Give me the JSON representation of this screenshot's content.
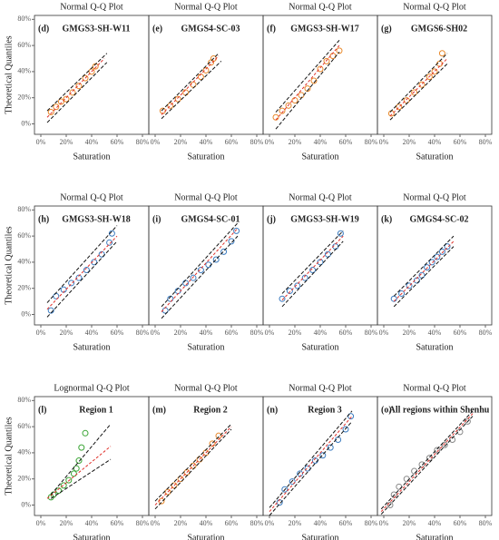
{
  "chart_data": [
    {
      "type": "scatter",
      "title": "Normal Q-Q Plot",
      "panel_label": "(d)",
      "subtitle": "GMGS3-SH-W11",
      "xlabel": "Saturation",
      "ylabel": "Theoretical Quantiles",
      "point_color": "#e8892b",
      "line_color": "#e0302a",
      "xlim": [
        -5,
        85
      ],
      "ylim": [
        -8,
        83
      ],
      "xticks": [
        {
          "value": 0,
          "label": "0%"
        },
        {
          "value": 20,
          "label": "20%"
        },
        {
          "value": 40,
          "label": "40%"
        },
        {
          "value": 60,
          "label": "60%"
        },
        {
          "value": 80,
          "label": "80%"
        }
      ],
      "yticks": [
        {
          "value": 0,
          "label": "0%"
        },
        {
          "value": 20,
          "label": "20%"
        },
        {
          "value": 40,
          "label": "40%"
        },
        {
          "value": 60,
          "label": "60%"
        },
        {
          "value": 80,
          "label": "80%"
        }
      ],
      "points": {
        "x": [
          8,
          12,
          16,
          20,
          25,
          30,
          35,
          40,
          43
        ],
        "y": [
          9,
          13,
          17,
          19,
          24,
          29,
          35,
          40,
          44
        ]
      },
      "fit": {
        "x": [
          5,
          50
        ],
        "y": [
          5,
          50
        ]
      },
      "upper": {
        "x": [
          5,
          52
        ],
        "y": [
          10,
          54
        ]
      },
      "lower": {
        "x": [
          5,
          52
        ],
        "y": [
          1,
          47
        ]
      }
    },
    {
      "type": "scatter",
      "title": "Normal Q-Q Plot",
      "panel_label": "(e)",
      "subtitle": "GMGS4-SC-03",
      "xlabel": "Saturation",
      "point_color": "#e8892b",
      "line_color": "#e0302a",
      "xlim": [
        -5,
        85
      ],
      "ylim": [
        -8,
        83
      ],
      "xticks": [
        {
          "value": 0,
          "label": "0%"
        },
        {
          "value": 20,
          "label": "20%"
        },
        {
          "value": 40,
          "label": "40%"
        },
        {
          "value": 60,
          "label": "60%"
        },
        {
          "value": 80,
          "label": "80%"
        }
      ],
      "points": {
        "x": [
          6,
          12,
          18,
          24,
          30,
          36,
          40,
          44,
          46
        ],
        "y": [
          10,
          14,
          19,
          24,
          30,
          36,
          41,
          47,
          50
        ]
      },
      "fit": {
        "x": [
          5,
          50
        ],
        "y": [
          7,
          52
        ]
      },
      "upper": {
        "x": [
          5,
          50
        ],
        "y": [
          10,
          54
        ]
      },
      "lower": {
        "x": [
          5,
          52
        ],
        "y": [
          4,
          48
        ]
      }
    },
    {
      "type": "scatter",
      "title": "Normal Q-Q Plot",
      "panel_label": "(f)",
      "subtitle": "GMGS3-SH-W17",
      "xlabel": "Saturation",
      "point_color": "#e8892b",
      "line_color": "#e0302a",
      "xlim": [
        -5,
        85
      ],
      "ylim": [
        -8,
        83
      ],
      "xticks": [
        {
          "value": 0,
          "label": "0%"
        },
        {
          "value": 20,
          "label": "20%"
        },
        {
          "value": 40,
          "label": "40%"
        },
        {
          "value": 60,
          "label": "60%"
        },
        {
          "value": 80,
          "label": "80%"
        }
      ],
      "points": {
        "x": [
          5,
          10,
          15,
          20,
          25,
          30,
          35,
          40,
          45,
          50,
          55
        ],
        "y": [
          5,
          10,
          14,
          18,
          22,
          27,
          33,
          42,
          48,
          52,
          56
        ]
      },
      "fit": {
        "x": [
          5,
          55
        ],
        "y": [
          3,
          60
        ]
      },
      "upper": {
        "x": [
          5,
          55
        ],
        "y": [
          9,
          64
        ]
      },
      "lower": {
        "x": [
          5,
          55
        ],
        "y": [
          -4,
          55
        ]
      }
    },
    {
      "type": "scatter",
      "title": "Normal Q-Q Plot",
      "panel_label": "(g)",
      "subtitle": "GMGS6-SH02",
      "xlabel": "Saturation",
      "point_color": "#e8892b",
      "line_color": "#e0302a",
      "xlim": [
        -5,
        85
      ],
      "ylim": [
        -8,
        83
      ],
      "xticks": [
        {
          "value": 0,
          "label": "0%"
        },
        {
          "value": 20,
          "label": "20%"
        },
        {
          "value": 40,
          "label": "40%"
        },
        {
          "value": 60,
          "label": "60%"
        },
        {
          "value": 80,
          "label": "80%"
        }
      ],
      "points": {
        "x": [
          6,
          12,
          18,
          24,
          30,
          36,
          40,
          44,
          46
        ],
        "y": [
          8,
          13,
          18,
          24,
          30,
          36,
          40,
          46,
          54
        ]
      },
      "fit": {
        "x": [
          5,
          50
        ],
        "y": [
          6,
          50
        ]
      },
      "upper": {
        "x": [
          5,
          50
        ],
        "y": [
          9,
          54
        ]
      },
      "lower": {
        "x": [
          5,
          50
        ],
        "y": [
          3,
          46
        ]
      }
    },
    {
      "type": "scatter",
      "title": "Normal Q-Q Plot",
      "panel_label": "(h)",
      "subtitle": "GMGS3-SH-W18",
      "xlabel": "Saturation",
      "ylabel": "Theoretical Quantiles",
      "point_color": "#3c7cc0",
      "line_color": "#e0302a",
      "xlim": [
        -5,
        85
      ],
      "ylim": [
        -8,
        83
      ],
      "xticks": [
        {
          "value": 0,
          "label": "0%"
        },
        {
          "value": 20,
          "label": "20%"
        },
        {
          "value": 40,
          "label": "40%"
        },
        {
          "value": 60,
          "label": "60%"
        },
        {
          "value": 80,
          "label": "80%"
        }
      ],
      "yticks": [
        {
          "value": 0,
          "label": "0%"
        },
        {
          "value": 20,
          "label": "20%"
        },
        {
          "value": 40,
          "label": "40%"
        },
        {
          "value": 60,
          "label": "60%"
        },
        {
          "value": 80,
          "label": "80%"
        }
      ],
      "points": {
        "x": [
          8,
          12,
          18,
          24,
          30,
          36,
          42,
          48,
          54,
          56
        ],
        "y": [
          3,
          14,
          19,
          24,
          28,
          34,
          40,
          46,
          55,
          62
        ]
      },
      "fit": {
        "x": [
          5,
          60
        ],
        "y": [
          4,
          60
        ]
      },
      "upper": {
        "x": [
          5,
          60
        ],
        "y": [
          9,
          68
        ]
      },
      "lower": {
        "x": [
          5,
          60
        ],
        "y": [
          -2,
          56
        ]
      }
    },
    {
      "type": "scatter",
      "title": "Normal Q-Q Plot",
      "panel_label": "(i)",
      "subtitle": "GMGS4-SC-01",
      "xlabel": "Saturation",
      "point_color": "#3c7cc0",
      "line_color": "#e0302a",
      "xlim": [
        -5,
        85
      ],
      "ylim": [
        -8,
        83
      ],
      "xticks": [
        {
          "value": 0,
          "label": "0%"
        },
        {
          "value": 20,
          "label": "20%"
        },
        {
          "value": 40,
          "label": "40%"
        },
        {
          "value": 60,
          "label": "60%"
        },
        {
          "value": 80,
          "label": "80%"
        }
      ],
      "points": {
        "x": [
          8,
          12,
          18,
          24,
          30,
          36,
          42,
          48,
          54,
          60,
          64
        ],
        "y": [
          3,
          12,
          18,
          24,
          28,
          34,
          38,
          42,
          48,
          56,
          64
        ]
      },
      "fit": {
        "x": [
          5,
          65
        ],
        "y": [
          2,
          66
        ]
      },
      "upper": {
        "x": [
          5,
          65
        ],
        "y": [
          6,
          70
        ]
      },
      "lower": {
        "x": [
          5,
          65
        ],
        "y": [
          -3,
          60
        ]
      }
    },
    {
      "type": "scatter",
      "title": "Normal Q-Q Plot",
      "panel_label": "(j)",
      "subtitle": "GMGS3-SH-W19",
      "xlabel": "Saturation",
      "point_color": "#3c7cc0",
      "line_color": "#e0302a",
      "xlim": [
        -5,
        85
      ],
      "ylim": [
        -8,
        83
      ],
      "xticks": [
        {
          "value": 0,
          "label": "0%"
        },
        {
          "value": 20,
          "label": "20%"
        },
        {
          "value": 40,
          "label": "40%"
        },
        {
          "value": 60,
          "label": "60%"
        },
        {
          "value": 80,
          "label": "80%"
        }
      ],
      "points": {
        "x": [
          10,
          16,
          22,
          28,
          34,
          40,
          46,
          52,
          56
        ],
        "y": [
          12,
          18,
          22,
          28,
          34,
          40,
          46,
          52,
          62
        ]
      },
      "fit": {
        "x": [
          10,
          58
        ],
        "y": [
          11,
          60
        ]
      },
      "upper": {
        "x": [
          10,
          58
        ],
        "y": [
          16,
          64
        ]
      },
      "lower": {
        "x": [
          10,
          58
        ],
        "y": [
          6,
          56
        ]
      }
    },
    {
      "type": "scatter",
      "title": "Normal Q-Q Plot",
      "panel_label": "(k)",
      "subtitle": "GMGS4-SC-02",
      "xlabel": "Saturation",
      "point_color": "#3c7cc0",
      "line_color": "#e0302a",
      "xlim": [
        -5,
        85
      ],
      "ylim": [
        -8,
        83
      ],
      "xticks": [
        {
          "value": 0,
          "label": "0%"
        },
        {
          "value": 20,
          "label": "20%"
        },
        {
          "value": 40,
          "label": "40%"
        },
        {
          "value": 60,
          "label": "60%"
        },
        {
          "value": 80,
          "label": "80%"
        }
      ],
      "points": {
        "x": [
          8,
          14,
          20,
          26,
          30,
          34,
          38,
          42,
          46,
          50
        ],
        "y": [
          12,
          16,
          22,
          26,
          30,
          36,
          40,
          44,
          48,
          52
        ]
      },
      "fit": {
        "x": [
          8,
          55
        ],
        "y": [
          10,
          56
        ]
      },
      "upper": {
        "x": [
          8,
          55
        ],
        "y": [
          14,
          60
        ]
      },
      "lower": {
        "x": [
          8,
          55
        ],
        "y": [
          6,
          52
        ]
      }
    },
    {
      "type": "scatter",
      "title": "Lognormal Q-Q Plot",
      "panel_label": "(l)",
      "subtitle": "Region 1",
      "xlabel": "Saturation",
      "ylabel": "Theoretical Quantiles",
      "point_color": "#3aa535",
      "line_color": "#e0302a",
      "xlim": [
        -5,
        85
      ],
      "ylim": [
        -8,
        83
      ],
      "xticks": [
        {
          "value": 0,
          "label": "0%"
        },
        {
          "value": 20,
          "label": "20%"
        },
        {
          "value": 40,
          "label": "40%"
        },
        {
          "value": 60,
          "label": "60%"
        },
        {
          "value": 80,
          "label": "80%"
        }
      ],
      "yticks": [
        {
          "value": 0,
          "label": "0%"
        },
        {
          "value": 20,
          "label": "20%"
        },
        {
          "value": 40,
          "label": "40%"
        },
        {
          "value": 60,
          "label": "60%"
        },
        {
          "value": 80,
          "label": "80%"
        }
      ],
      "points": {
        "x": [
          8,
          10,
          14,
          18,
          22,
          26,
          28,
          30,
          32,
          35
        ],
        "y": [
          6,
          8,
          11,
          15,
          19,
          24,
          28,
          34,
          44,
          55
        ]
      },
      "fit": {
        "x": [
          5,
          55
        ],
        "y": [
          5,
          45
        ]
      },
      "upper": {
        "x": [
          8,
          55
        ],
        "y": [
          8,
          62
        ]
      },
      "lower": {
        "x": [
          8,
          55
        ],
        "y": [
          5,
          35
        ]
      }
    },
    {
      "type": "scatter",
      "title": "Normal Q-Q Plot",
      "panel_label": "(m)",
      "subtitle": "Region 2",
      "xlabel": "Saturation",
      "point_color": "#e8892b",
      "line_color": "#e0302a",
      "xlim": [
        -5,
        85
      ],
      "ylim": [
        -8,
        83
      ],
      "xticks": [
        {
          "value": 0,
          "label": "0%"
        },
        {
          "value": 20,
          "label": "20%"
        },
        {
          "value": 40,
          "label": "40%"
        },
        {
          "value": 60,
          "label": "60%"
        },
        {
          "value": 80,
          "label": "80%"
        }
      ],
      "points": {
        "x": [
          5,
          10,
          15,
          20,
          25,
          30,
          35,
          40,
          45,
          50
        ],
        "y": [
          3,
          10,
          15,
          20,
          25,
          30,
          35,
          40,
          47,
          53
        ]
      },
      "fit": {
        "x": [
          0,
          60
        ],
        "y": [
          0,
          60
        ]
      },
      "upper": {
        "x": [
          0,
          60
        ],
        "y": [
          3,
          62
        ]
      },
      "lower": {
        "x": [
          0,
          60
        ],
        "y": [
          -3,
          58
        ]
      }
    },
    {
      "type": "scatter",
      "title": "Normal Q-Q Plot",
      "panel_label": "(n)",
      "subtitle": "Region 3",
      "xlabel": "Saturation",
      "point_color": "#3c7cc0",
      "line_color": "#e0302a",
      "xlim": [
        -5,
        85
      ],
      "ylim": [
        -8,
        83
      ],
      "xticks": [
        {
          "value": 0,
          "label": "0%"
        },
        {
          "value": 20,
          "label": "20%"
        },
        {
          "value": 40,
          "label": "40%"
        },
        {
          "value": 60,
          "label": "60%"
        },
        {
          "value": 80,
          "label": "80%"
        }
      ],
      "points": {
        "x": [
          8,
          12,
          18,
          24,
          30,
          36,
          42,
          48,
          54,
          60,
          64
        ],
        "y": [
          2,
          12,
          18,
          24,
          28,
          34,
          38,
          44,
          50,
          58,
          68
        ]
      },
      "fit": {
        "x": [
          0,
          65
        ],
        "y": [
          -5,
          68
        ]
      },
      "upper": {
        "x": [
          0,
          65
        ],
        "y": [
          -2,
          72
        ]
      },
      "lower": {
        "x": [
          0,
          65
        ],
        "y": [
          -8,
          64
        ]
      }
    },
    {
      "type": "scatter",
      "title": "Normal Q-Q Plot",
      "panel_label": "(o)",
      "subtitle": "All regions within Shenhu",
      "xlabel": "Saturation",
      "point_color": "#888888",
      "line_color": "#e0302a",
      "xlim": [
        -5,
        85
      ],
      "ylim": [
        -8,
        83
      ],
      "xticks": [
        {
          "value": 0,
          "label": "0%"
        },
        {
          "value": 20,
          "label": "20%"
        },
        {
          "value": 40,
          "label": "40%"
        },
        {
          "value": 60,
          "label": "60%"
        },
        {
          "value": 80,
          "label": "80%"
        }
      ],
      "points": {
        "x": [
          5,
          8,
          12,
          18,
          24,
          30,
          36,
          42,
          48,
          54,
          60,
          66
        ],
        "y": [
          0,
          8,
          14,
          20,
          26,
          31,
          36,
          42,
          46,
          50,
          56,
          64
        ]
      },
      "fit": {
        "x": [
          -2,
          70
        ],
        "y": [
          -5,
          70
        ]
      },
      "upper": {
        "x": [
          -2,
          70
        ],
        "y": [
          -3,
          72
        ]
      },
      "lower": {
        "x": [
          -2,
          70
        ],
        "y": [
          -7,
          68
        ]
      }
    }
  ]
}
